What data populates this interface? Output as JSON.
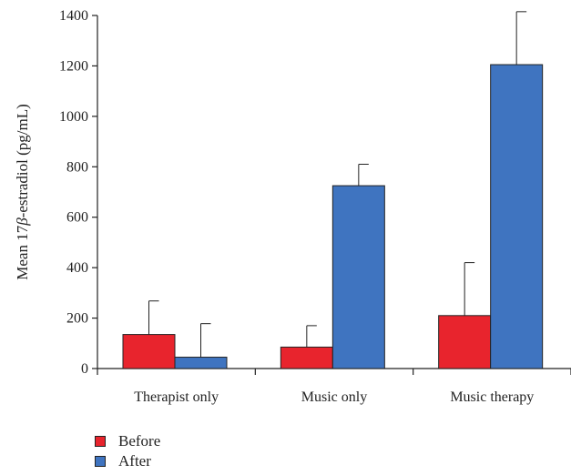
{
  "chart_data": {
    "type": "bar",
    "categories": [
      "Therapist only",
      "Music only",
      "Music therapy"
    ],
    "series": [
      {
        "name": "Before",
        "color": "#e8242d",
        "values": [
          135,
          85,
          210
        ],
        "errors": [
          133,
          85,
          210
        ]
      },
      {
        "name": "After",
        "color": "#3f74c0",
        "values": [
          45,
          725,
          1205
        ],
        "errors": [
          133,
          85,
          210
        ]
      }
    ],
    "ylabel_prefix": "Mean 17",
    "ylabel_symbol": "β",
    "ylabel_suffix": "-estradiol (pg/mL)",
    "ylim": [
      0,
      1400
    ],
    "yticks": [
      "0",
      "200",
      "400",
      "600",
      "800",
      "1000",
      "1200",
      "1400"
    ],
    "legend_position": "bottom-left",
    "grid": false
  }
}
